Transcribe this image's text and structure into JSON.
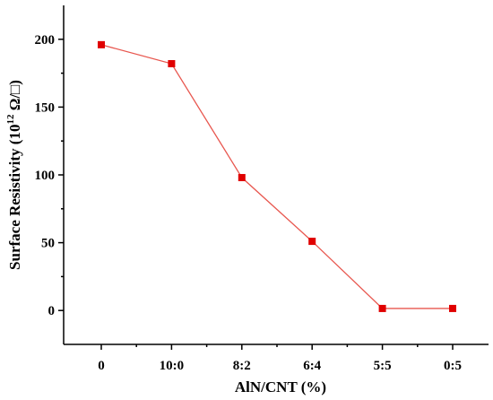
{
  "chart_data": {
    "type": "line",
    "title": "",
    "xlabel": "AlN/CNT (%)",
    "ylabel_main": "Surface Resistivity (10",
    "ylabel_sup": "12",
    "ylabel_unit": " Ω/□)",
    "categories": [
      "0",
      "10:0",
      "8:2",
      "6:4",
      "5:5",
      "0:5"
    ],
    "series": [
      {
        "values": [
          196,
          182,
          98,
          51,
          1.5,
          1.5
        ]
      }
    ],
    "ylim": [
      -25,
      225
    ],
    "yticks": [
      0,
      50,
      100,
      150,
      200
    ],
    "grid": false,
    "legend": "none",
    "marker": "square",
    "colors": {
      "line": "#e8574f",
      "marker": "#e00000",
      "axis": "#000000"
    }
  }
}
